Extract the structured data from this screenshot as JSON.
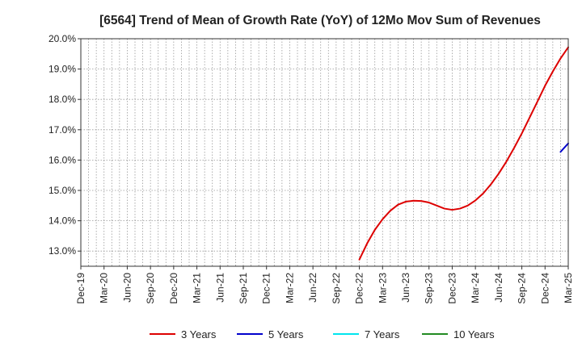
{
  "chart_data": {
    "type": "line",
    "title": "[6564]  Trend of Mean of Growth Rate (YoY) of 12Mo Mov Sum of Revenues",
    "xlabel": "",
    "ylabel": "",
    "ylim": [
      12.5,
      20.0
    ],
    "y_ticks": [
      13.0,
      14.0,
      15.0,
      16.0,
      17.0,
      18.0,
      19.0,
      20.0
    ],
    "y_tick_labels": [
      "13.0%",
      "14.0%",
      "15.0%",
      "16.0%",
      "17.0%",
      "18.0%",
      "19.0%",
      "20.0%"
    ],
    "x_tick_labels": [
      "Dec-19",
      "Mar-20",
      "Jun-20",
      "Sep-20",
      "Dec-20",
      "Mar-21",
      "Jun-21",
      "Sep-21",
      "Dec-21",
      "Mar-22",
      "Jun-22",
      "Sep-22",
      "Dec-22",
      "Mar-23",
      "Jun-23",
      "Sep-23",
      "Dec-23",
      "Mar-24",
      "Jun-24",
      "Sep-24",
      "Dec-24",
      "Mar-25"
    ],
    "x_months_total": 63,
    "grid": true,
    "legend_position": "bottom",
    "series": [
      {
        "name": "3 Years",
        "color": "#dd0000",
        "start_month_index": 36,
        "values": [
          12.72,
          13.25,
          13.7,
          14.05,
          14.33,
          14.53,
          14.63,
          14.66,
          14.65,
          14.6,
          14.5,
          14.4,
          14.36,
          14.4,
          14.5,
          14.67,
          14.9,
          15.2,
          15.55,
          15.95,
          16.4,
          16.88,
          17.4,
          17.92,
          18.45,
          18.92,
          19.35,
          19.72
        ]
      },
      {
        "name": "5 Years",
        "color": "#0000cc",
        "start_month_index": 62,
        "values": [
          16.27,
          16.55
        ]
      },
      {
        "name": "7 Years",
        "color": "#00e5ee",
        "start_month_index": 0,
        "values": []
      },
      {
        "name": "10 Years",
        "color": "#228b22",
        "start_month_index": 0,
        "values": []
      }
    ]
  }
}
